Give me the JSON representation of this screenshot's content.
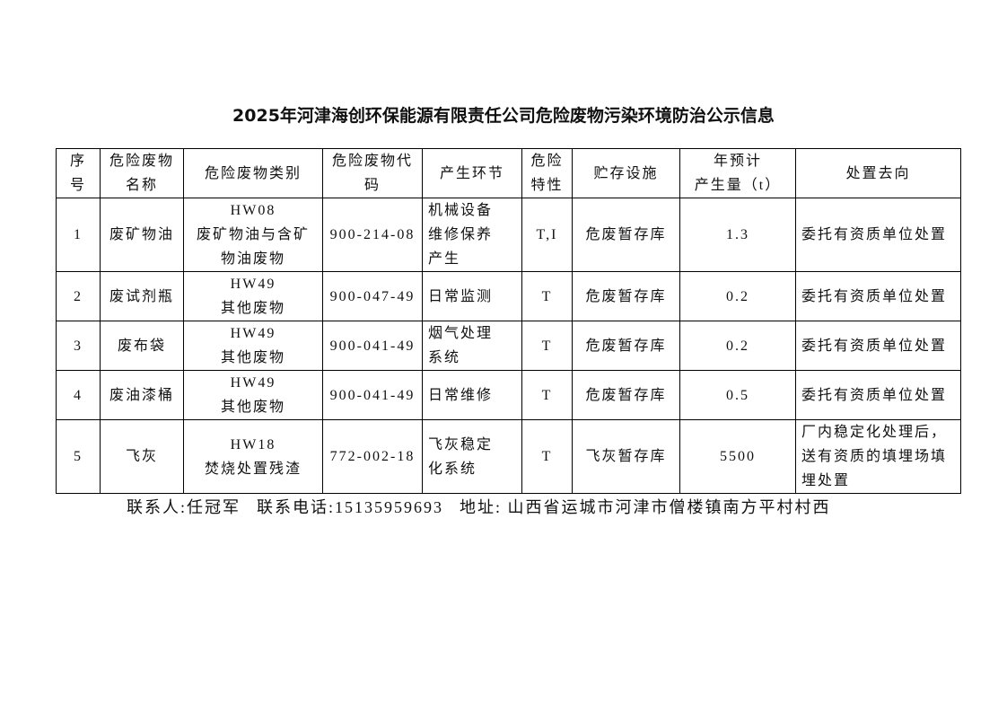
{
  "title": "2025年河津海创环保能源有限责任公司危险废物污染环境防治公示信息",
  "headers": [
    [
      "序",
      "号"
    ],
    [
      "危险废物",
      "名称"
    ],
    [
      "危险废物类别"
    ],
    [
      "危险废物代",
      "码"
    ],
    [
      "产生环节"
    ],
    [
      "危险",
      "特性"
    ],
    [
      "贮存设施"
    ],
    [
      "年预计",
      "产生量（t）"
    ],
    [
      "处置去向"
    ]
  ],
  "rows": [
    {
      "no": "1",
      "name": "废矿物油",
      "category": [
        "HW08",
        "废矿物油与含矿",
        "物油废物"
      ],
      "code": "900-214-08",
      "stage": [
        "机械设备",
        "维修保养",
        "产生"
      ],
      "hazard": "T,I",
      "storage": "危废暂存库",
      "amount": "1.3",
      "disposal": [
        "委托有资质单位处置"
      ]
    },
    {
      "no": "2",
      "name": "废试剂瓶",
      "category": [
        "HW49",
        "其他废物"
      ],
      "code": "900-047-49",
      "stage": [
        "日常监测"
      ],
      "hazard": "T",
      "storage": "危废暂存库",
      "amount": "0.2",
      "disposal": [
        "委托有资质单位处置"
      ]
    },
    {
      "no": "3",
      "name": "废布袋",
      "category": [
        "HW49",
        "其他废物"
      ],
      "code": "900-041-49",
      "stage": [
        "烟气处理",
        "系统"
      ],
      "hazard": "T",
      "storage": "危废暂存库",
      "amount": "0.2",
      "disposal": [
        "委托有资质单位处置"
      ]
    },
    {
      "no": "4",
      "name": "废油漆桶",
      "category": [
        "HW49",
        "其他废物"
      ],
      "code": "900-041-49",
      "stage": [
        "日常维修"
      ],
      "hazard": "T",
      "storage": "危废暂存库",
      "amount": "0.5",
      "disposal": [
        "委托有资质单位处置"
      ]
    },
    {
      "no": "5",
      "name": "飞灰",
      "category": [
        "HW18",
        "焚烧处置残渣"
      ],
      "code": "772-002-18",
      "stage": [
        "飞灰稳定",
        "化系统"
      ],
      "hazard": "T",
      "storage": "飞灰暂存库",
      "amount": "5500",
      "disposal": [
        "厂内稳定化处理后，",
        "送有资质的填埋场填",
        "埋处置"
      ]
    }
  ],
  "footer": {
    "contact": "联系人:任冠军",
    "phone": "联系电话:15135959693",
    "address": "地址: 山西省运城市河津市僧楼镇南方平村村西"
  }
}
